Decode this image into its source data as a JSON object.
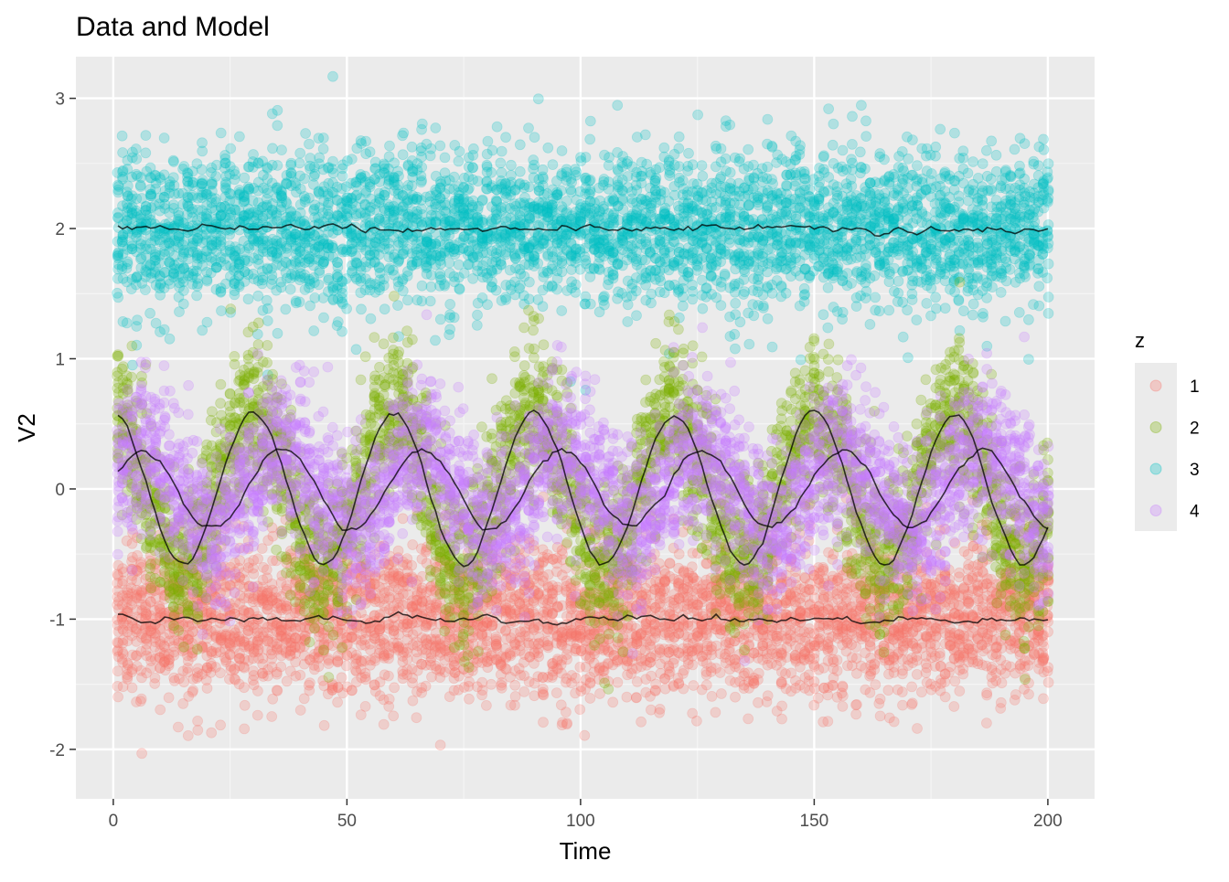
{
  "chart_data": {
    "type": "scatter",
    "title": "Data and Model",
    "xlabel": "Time",
    "ylabel": "V2",
    "xlim": [
      -8,
      210
    ],
    "ylim": [
      -2.38,
      3.32
    ],
    "x_ticks": [
      0,
      50,
      100,
      150,
      200
    ],
    "x_tick_labels": [
      "0",
      "50",
      "100",
      "150",
      "200"
    ],
    "y_ticks": [
      -2,
      -1,
      0,
      1,
      2,
      3
    ],
    "y_tick_labels": [
      "-2",
      "-1",
      "0",
      "1",
      "2",
      "3"
    ],
    "grid": true,
    "legend": {
      "title": "z",
      "position": "right",
      "entries": [
        "1",
        "2",
        "3",
        "4"
      ]
    },
    "point_alpha": 0.25,
    "model_line_color": "#000000",
    "points_per_series_per_time": 20,
    "time_range": [
      1,
      200
    ],
    "series": [
      {
        "name": "1",
        "color": "#F8766D",
        "shape": "constant",
        "level": -1.0,
        "amplitude": 0,
        "period": 30,
        "phase_peak": 0,
        "sd": 0.3
      },
      {
        "name": "2",
        "color": "#7CAE00",
        "shape": "sine",
        "level": 0.0,
        "amplitude": 0.58,
        "period": 30,
        "phase_peak": 0,
        "sd": 0.3
      },
      {
        "name": "3",
        "color": "#00BFC4",
        "shape": "constant",
        "level": 2.0,
        "amplitude": 0,
        "period": 30,
        "phase_peak": 0,
        "sd": 0.3
      },
      {
        "name": "4",
        "color": "#C77CFF",
        "shape": "sine",
        "level": 0.0,
        "amplitude": 0.3,
        "period": 30,
        "phase_peak": 6,
        "sd": 0.3
      }
    ]
  }
}
